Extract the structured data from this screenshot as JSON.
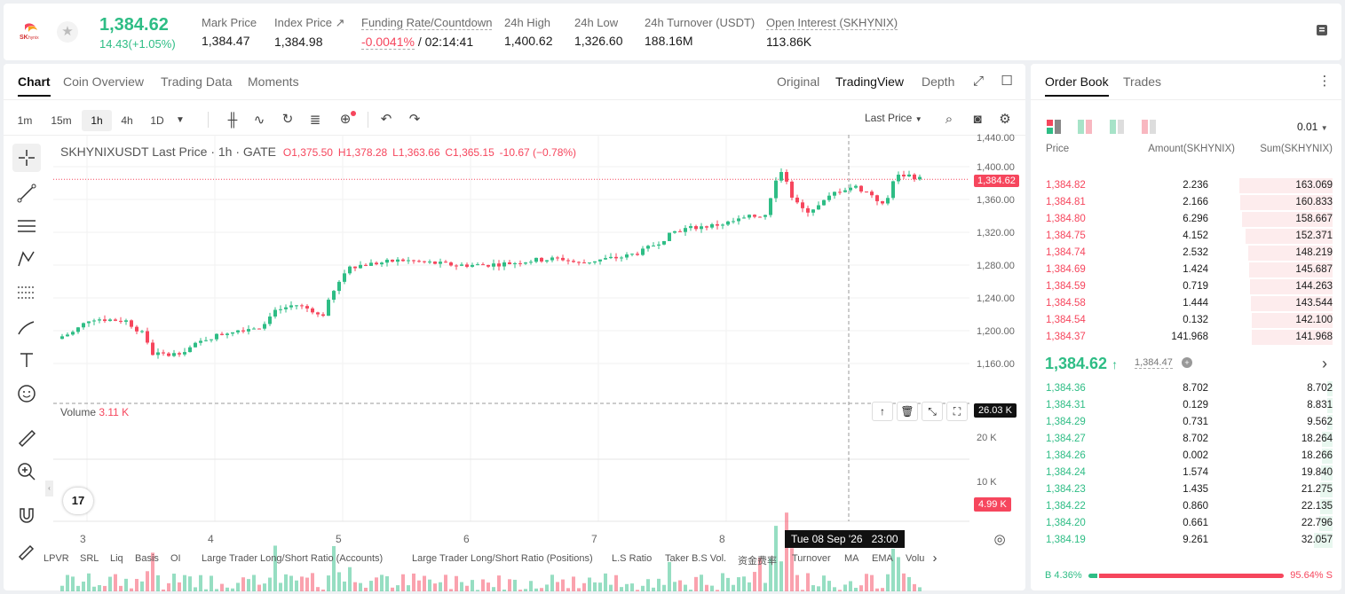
{
  "ticker": {
    "last": "1,384.62",
    "change": "14.43(+1.05%)"
  },
  "stats": [
    {
      "label": "Mark Price",
      "value": "1,384.47"
    },
    {
      "label": "Index Price ↗",
      "value": "1,384.98"
    },
    {
      "label": "Funding Rate/Countdown",
      "value_red": "-0.0041%",
      "value": " / 02:14:41"
    },
    {
      "label": "24h High",
      "value": "1,400.62"
    },
    {
      "label": "24h Low",
      "value": "1,326.60"
    },
    {
      "label": "24h Turnover (USDT)",
      "value": "188.16M"
    },
    {
      "label": "Open Interest (SKHYNIX)",
      "value": "113.86K"
    }
  ],
  "logo_text": "SK hynix",
  "chart_tabs": [
    "Chart",
    "Coin Overview",
    "Trading Data",
    "Moments"
  ],
  "view_tabs": [
    "Original",
    "TradingView",
    "Depth"
  ],
  "timeframes": [
    "1m",
    "15m",
    "1h",
    "4h",
    "1D"
  ],
  "active_timeframe": "1h",
  "price_source": "Last Price",
  "legend": {
    "symbol": "SKHYNIXUSDT Last Price · 1h · GATE",
    "o": "O1,375.50",
    "h": "H1,378.28",
    "l": "L1,363.66",
    "c": "C1,365.15",
    "chg": "-10.67 (−0.78%)"
  },
  "price_axis": [
    "1,440.00",
    "1,400.00",
    "1,360.00",
    "1,320.00",
    "1,280.00",
    "1,240.00",
    "1,200.00",
    "1,160.00"
  ],
  "price_tag": "1,384.62",
  "volume": {
    "label": "Volume",
    "value": "3.11 K",
    "axis": [
      "20 K",
      "10 K"
    ],
    "crosshair_tag": "26.03 K",
    "last_tag": "4.99 K"
  },
  "time_axis": [
    "3",
    "4",
    "5",
    "6",
    "7",
    "8"
  ],
  "crosshair_time": "Tue 08 Sep '26   23:00",
  "bottom_indicators": [
    "LPVR",
    "SRL",
    "Liq",
    "Basis",
    "OI",
    "Large Trader Long/Short Ratio (Accounts)",
    "Large Trader Long/Short Ratio (Positions)",
    "L.S Ratio",
    "Taker B.S Vol.",
    "资金费率",
    "Turnover",
    "MA",
    "EMA",
    "Volu"
  ],
  "orderbook": {
    "tabs": [
      "Order Book",
      "Trades"
    ],
    "precision": "0.01",
    "headers": [
      "Price",
      "Amount(SKHYNIX)",
      "Sum(SKHYNIX)"
    ],
    "asks": [
      [
        "1,384.82",
        "2.236",
        "163.069"
      ],
      [
        "1,384.81",
        "2.166",
        "160.833"
      ],
      [
        "1,384.80",
        "6.296",
        "158.667"
      ],
      [
        "1,384.75",
        "4.152",
        "152.371"
      ],
      [
        "1,384.74",
        "2.532",
        "148.219"
      ],
      [
        "1,384.69",
        "1.424",
        "145.687"
      ],
      [
        "1,384.59",
        "0.719",
        "144.263"
      ],
      [
        "1,384.58",
        "1.444",
        "143.544"
      ],
      [
        "1,384.54",
        "0.132",
        "142.100"
      ],
      [
        "1,384.37",
        "141.968",
        "141.968"
      ]
    ],
    "mid_price": "1,384.62",
    "mid_mark": "1,384.47",
    "bids": [
      [
        "1,384.36",
        "8.702",
        "8.702"
      ],
      [
        "1,384.31",
        "0.129",
        "8.831"
      ],
      [
        "1,384.29",
        "0.731",
        "9.562"
      ],
      [
        "1,384.27",
        "8.702",
        "18.264"
      ],
      [
        "1,384.26",
        "0.002",
        "18.266"
      ],
      [
        "1,384.24",
        "1.574",
        "19.840"
      ],
      [
        "1,384.23",
        "1.435",
        "21.275"
      ],
      [
        "1,384.22",
        "0.860",
        "22.135"
      ],
      [
        "1,384.20",
        "0.661",
        "22.796"
      ],
      [
        "1,384.19",
        "9.261",
        "32.057"
      ]
    ],
    "ratio_buy_label": "B",
    "ratio_buy": "4.36%",
    "ratio_sell": "95.64%",
    "ratio_sell_label": "S"
  },
  "colors": {
    "up": "#2ebd85",
    "down": "#f6465d"
  }
}
